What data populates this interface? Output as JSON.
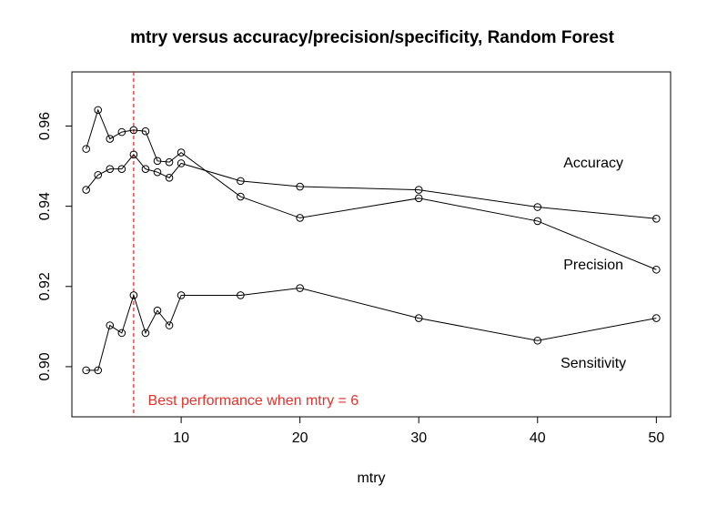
{
  "chart_data": {
    "type": "line",
    "title": "mtry versus accuracy/precision/specificity, Random Forest",
    "xlabel": "mtry",
    "ylabel": "",
    "xlim": [
      0.8,
      51.2
    ],
    "ylim": [
      0.8875,
      0.9735
    ],
    "xticks": [
      10,
      20,
      30,
      40,
      50
    ],
    "yticks": [
      0.9,
      0.92,
      0.94,
      0.96
    ],
    "ytick_labels": [
      "0.90",
      "0.92",
      "0.94",
      "0.96"
    ],
    "grid": false,
    "series": [
      {
        "name": "Accuracy",
        "x": [
          2,
          3,
          4,
          5,
          6,
          7,
          8,
          9,
          10,
          15,
          20,
          30,
          40,
          50
        ],
        "y": [
          0.9441,
          0.9478,
          0.9493,
          0.9493,
          0.9529,
          0.9493,
          0.9485,
          0.9471,
          0.9507,
          0.9463,
          0.9449,
          0.9441,
          0.9398,
          0.9369
        ]
      },
      {
        "name": "Precision",
        "x": [
          2,
          3,
          4,
          5,
          6,
          7,
          8,
          9,
          10,
          15,
          20,
          30,
          40,
          50
        ],
        "y": [
          0.9543,
          0.964,
          0.9568,
          0.9585,
          0.959,
          0.9587,
          0.9513,
          0.951,
          0.9534,
          0.9424,
          0.9371,
          0.942,
          0.9363,
          0.9242
        ]
      },
      {
        "name": "Sensitivity",
        "x": [
          2,
          3,
          4,
          5,
          6,
          7,
          8,
          9,
          10,
          15,
          20,
          30,
          40,
          50
        ],
        "y": [
          0.8991,
          0.8991,
          0.9103,
          0.9084,
          0.9178,
          0.9084,
          0.914,
          0.9103,
          0.9178,
          0.9178,
          0.9196,
          0.9121,
          0.9065,
          0.9121
        ]
      }
    ],
    "series_labels": [
      {
        "text": "Accuracy",
        "x": 44.7,
        "y": 0.9497
      },
      {
        "text": "Precision",
        "x": 44.7,
        "y": 0.9243
      },
      {
        "text": "Sensitivity",
        "x": 44.7,
        "y": 0.8998
      }
    ],
    "vline": {
      "x": 6,
      "color": "#e8302a"
    },
    "annotation": {
      "text": "Best performance when mtry =  6",
      "x": 7.2,
      "y": 0.8905,
      "color": "#e8302a"
    }
  }
}
